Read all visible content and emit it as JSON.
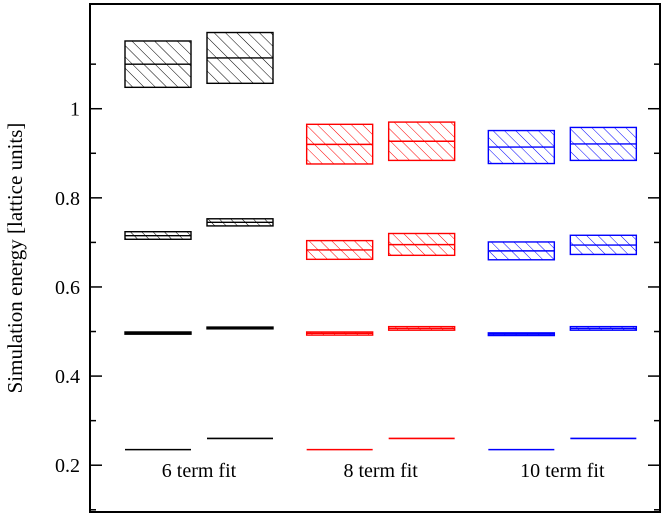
{
  "chart_data": {
    "type": "box",
    "ylabel": "Simulation energy [lattice units]",
    "ylim": [
      0.095,
      1.235
    ],
    "yticks": [
      0.2,
      0.4,
      0.6,
      0.8,
      1.0
    ],
    "ytick_labels": [
      "0.2",
      "0.4",
      "0.6",
      "0.8",
      "1"
    ],
    "groups": [
      {
        "label": "6 term fit",
        "color": "#000000",
        "columns": [
          {
            "levels": [
              {
                "center": 0.235,
                "low": 0.235,
                "high": 0.235
              },
              {
                "center": 0.497,
                "low": 0.494,
                "high": 0.499
              },
              {
                "center": 0.715,
                "low": 0.707,
                "high": 0.724
              },
              {
                "center": 1.1,
                "low": 1.048,
                "high": 1.152
              }
            ]
          },
          {
            "levels": [
              {
                "center": 0.26,
                "low": 0.26,
                "high": 0.26
              },
              {
                "center": 0.508,
                "low": 0.506,
                "high": 0.51
              },
              {
                "center": 0.745,
                "low": 0.737,
                "high": 0.753
              },
              {
                "center": 1.114,
                "low": 1.057,
                "high": 1.171
              }
            ]
          }
        ]
      },
      {
        "label": "8 term fit",
        "color": "#ff0000",
        "columns": [
          {
            "levels": [
              {
                "center": 0.235,
                "low": 0.235,
                "high": 0.235
              },
              {
                "center": 0.496,
                "low": 0.492,
                "high": 0.499
              },
              {
                "center": 0.683,
                "low": 0.662,
                "high": 0.704
              },
              {
                "center": 0.92,
                "low": 0.876,
                "high": 0.965
              }
            ]
          },
          {
            "levels": [
              {
                "center": 0.26,
                "low": 0.26,
                "high": 0.26
              },
              {
                "center": 0.507,
                "low": 0.503,
                "high": 0.511
              },
              {
                "center": 0.695,
                "low": 0.671,
                "high": 0.72
              },
              {
                "center": 0.927,
                "low": 0.884,
                "high": 0.97
              }
            ]
          }
        ]
      },
      {
        "label": "10 term fit",
        "color": "#0000ff",
        "columns": [
          {
            "levels": [
              {
                "center": 0.235,
                "low": 0.235,
                "high": 0.235
              },
              {
                "center": 0.494,
                "low": 0.491,
                "high": 0.497
              },
              {
                "center": 0.681,
                "low": 0.661,
                "high": 0.701
              },
              {
                "center": 0.914,
                "low": 0.877,
                "high": 0.951
              }
            ]
          },
          {
            "levels": [
              {
                "center": 0.26,
                "low": 0.26,
                "high": 0.26
              },
              {
                "center": 0.507,
                "low": 0.503,
                "high": 0.511
              },
              {
                "center": 0.694,
                "low": 0.673,
                "high": 0.716
              },
              {
                "center": 0.921,
                "low": 0.884,
                "high": 0.958
              }
            ]
          }
        ]
      }
    ]
  }
}
